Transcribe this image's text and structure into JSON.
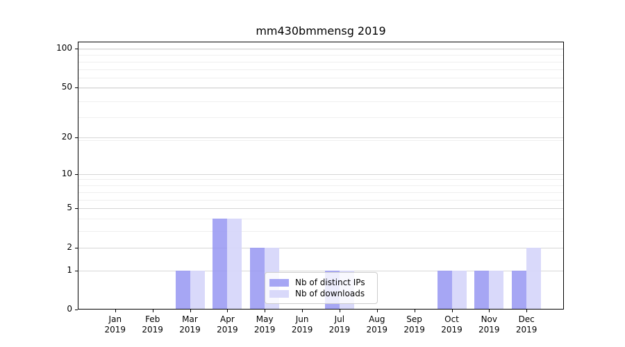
{
  "chart_data": {
    "type": "bar",
    "title": "mm430bmmensg 2019",
    "categories": [
      "Jan",
      "Feb",
      "Mar",
      "Apr",
      "May",
      "Jun",
      "Jul",
      "Aug",
      "Sep",
      "Oct",
      "Nov",
      "Dec"
    ],
    "category_year": "2019",
    "series": [
      {
        "name": "Nb of distinct IPs",
        "color": "rgba(151, 151, 242, 0.85)",
        "values": [
          0,
          0,
          1,
          4,
          2,
          0,
          1,
          0,
          0,
          1,
          1,
          1
        ]
      },
      {
        "name": "Nb of downloads",
        "color": "rgba(214, 214, 250, 0.92)",
        "values": [
          0,
          0,
          1,
          4,
          2,
          0,
          1,
          0,
          0,
          1,
          1,
          2
        ]
      }
    ],
    "yticks": [
      0,
      1,
      2,
      5,
      10,
      20,
      50,
      100
    ],
    "yscale": "log1p",
    "ylim": [
      0,
      110
    ],
    "grid": true,
    "legend_position": "inside-lower-center",
    "colors": {
      "axis": "#000000",
      "major_grid": "#d6d6d6",
      "minor_grid": "#efefef",
      "legend_border": "#cccccc"
    }
  }
}
